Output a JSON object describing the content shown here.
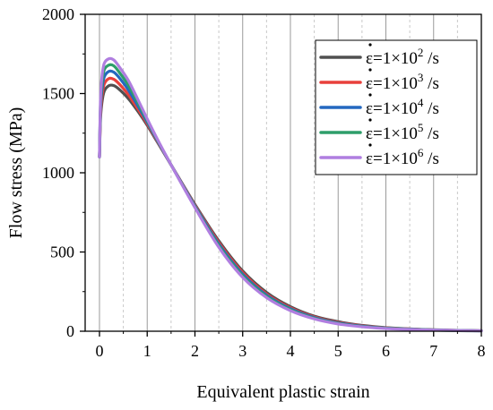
{
  "chart_data": {
    "type": "line",
    "title": "",
    "xlabel": "Equivalent plastic strain",
    "ylabel": "Flow stress (MPa)",
    "xlim": [
      -0.3,
      8
    ],
    "ylim": [
      0,
      2000
    ],
    "x_ticks": [
      0,
      1,
      2,
      3,
      4,
      5,
      6,
      7,
      8
    ],
    "y_ticks": [
      0,
      500,
      1000,
      1500,
      2000
    ],
    "grid": "vertical major solid, minor dashed",
    "legend_position": "top-right",
    "series": [
      {
        "name": "ε̇=1×10² /s",
        "legend": {
          "prefix": "ε=1×10",
          "exp": "2",
          "suffix": " /s"
        },
        "color": "#505050",
        "x": [
          0,
          0.02,
          0.05,
          0.1,
          0.2,
          0.3,
          0.4,
          0.6,
          0.8,
          1.0,
          1.2,
          1.5,
          2.0,
          2.5,
          3.0,
          3.5,
          4.0,
          4.5,
          5.0,
          5.5,
          6.0,
          7.0,
          8.0
        ],
        "y": [
          1100,
          1330,
          1440,
          1515,
          1550,
          1550,
          1530,
          1470,
          1390,
          1300,
          1200,
          1050,
          800,
          570,
          380,
          245,
          155,
          95,
          60,
          37,
          23,
          9,
          3
        ]
      },
      {
        "name": "ε̇=1×10³ /s",
        "legend": {
          "prefix": "ε=1×10",
          "exp": "3",
          "suffix": " /s"
        },
        "color": "#e8403c",
        "x": [
          0,
          0.02,
          0.05,
          0.1,
          0.2,
          0.3,
          0.4,
          0.6,
          0.8,
          1.0,
          1.2,
          1.5,
          2.0,
          2.5,
          3.0,
          3.5,
          4.0,
          4.5,
          5.0,
          5.5,
          6.0,
          7.0,
          8.0
        ],
        "y": [
          1100,
          1360,
          1480,
          1560,
          1595,
          1590,
          1565,
          1495,
          1405,
          1310,
          1205,
          1050,
          795,
          560,
          370,
          235,
          148,
          90,
          55,
          34,
          21,
          8,
          3
        ]
      },
      {
        "name": "ε̇=1×10⁴ /s",
        "legend": {
          "prefix": "ε=1×10",
          "exp": "4",
          "suffix": " /s"
        },
        "color": "#2468c0",
        "x": [
          0,
          0.02,
          0.05,
          0.1,
          0.2,
          0.3,
          0.4,
          0.6,
          0.8,
          1.0,
          1.2,
          1.5,
          2.0,
          2.5,
          3.0,
          3.5,
          4.0,
          4.5,
          5.0,
          5.5,
          6.0,
          7.0,
          8.0
        ],
        "y": [
          1100,
          1390,
          1520,
          1605,
          1640,
          1635,
          1605,
          1525,
          1425,
          1320,
          1210,
          1050,
          790,
          550,
          360,
          228,
          142,
          86,
          52,
          32,
          20,
          8,
          3
        ]
      },
      {
        "name": "ε̇=1×10⁵ /s",
        "legend": {
          "prefix": "ε=1×10",
          "exp": "5",
          "suffix": " /s"
        },
        "color": "#2e9e6a",
        "x": [
          0,
          0.02,
          0.05,
          0.1,
          0.2,
          0.3,
          0.4,
          0.6,
          0.8,
          1.0,
          1.2,
          1.5,
          2.0,
          2.5,
          3.0,
          3.5,
          4.0,
          4.5,
          5.0,
          5.5,
          6.0,
          7.0,
          8.0
        ],
        "y": [
          1100,
          1420,
          1560,
          1650,
          1680,
          1675,
          1640,
          1555,
          1445,
          1330,
          1215,
          1050,
          785,
          540,
          350,
          220,
          136,
          82,
          49,
          30,
          19,
          7,
          2
        ]
      },
      {
        "name": "ε̇=1×10⁶ /s",
        "legend": {
          "prefix": "ε=1×10",
          "exp": "6",
          "suffix": " /s"
        },
        "color": "#b07ee0",
        "x": [
          0,
          0.02,
          0.05,
          0.1,
          0.2,
          0.3,
          0.4,
          0.6,
          0.8,
          1.0,
          1.2,
          1.5,
          2.0,
          2.5,
          3.0,
          3.5,
          4.0,
          4.5,
          5.0,
          5.5,
          6.0,
          7.0,
          8.0
        ],
        "y": [
          1100,
          1450,
          1600,
          1690,
          1720,
          1712,
          1675,
          1585,
          1465,
          1340,
          1220,
          1050,
          780,
          530,
          340,
          212,
          130,
          78,
          46,
          28,
          17,
          7,
          2
        ]
      }
    ]
  }
}
